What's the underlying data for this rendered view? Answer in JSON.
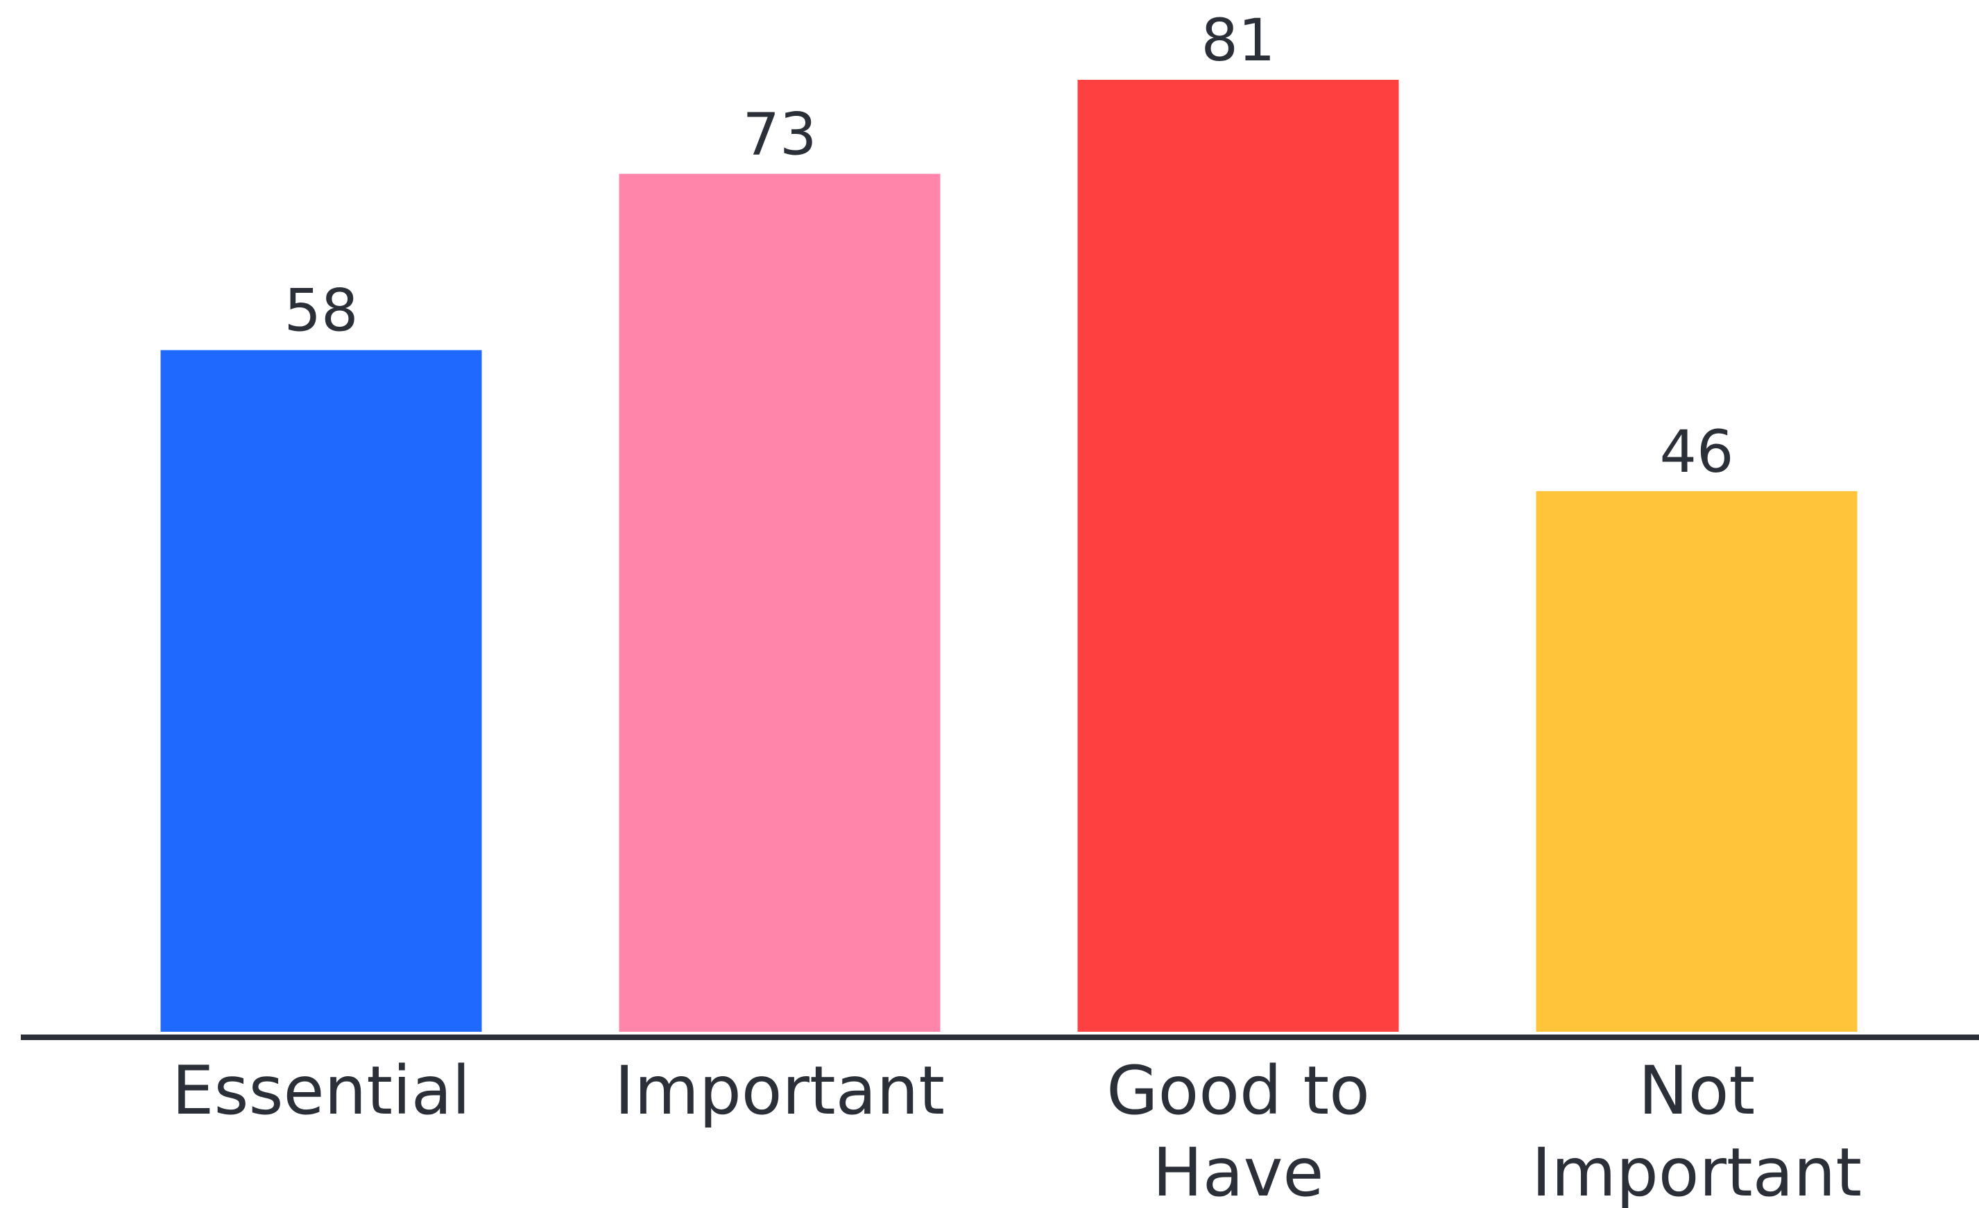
{
  "chart_data": {
    "type": "bar",
    "categories": [
      "Essential",
      "Important",
      "Good to\nHave",
      "Not\nImportant"
    ],
    "values": [
      58,
      73,
      81,
      46
    ],
    "colors": [
      "#1f69ff",
      "#ff85ab",
      "#ff4040",
      "#ffc43a"
    ],
    "axis_color": "#2b2f38",
    "ylim": [
      0,
      81
    ],
    "grid": false,
    "legend": "none"
  }
}
